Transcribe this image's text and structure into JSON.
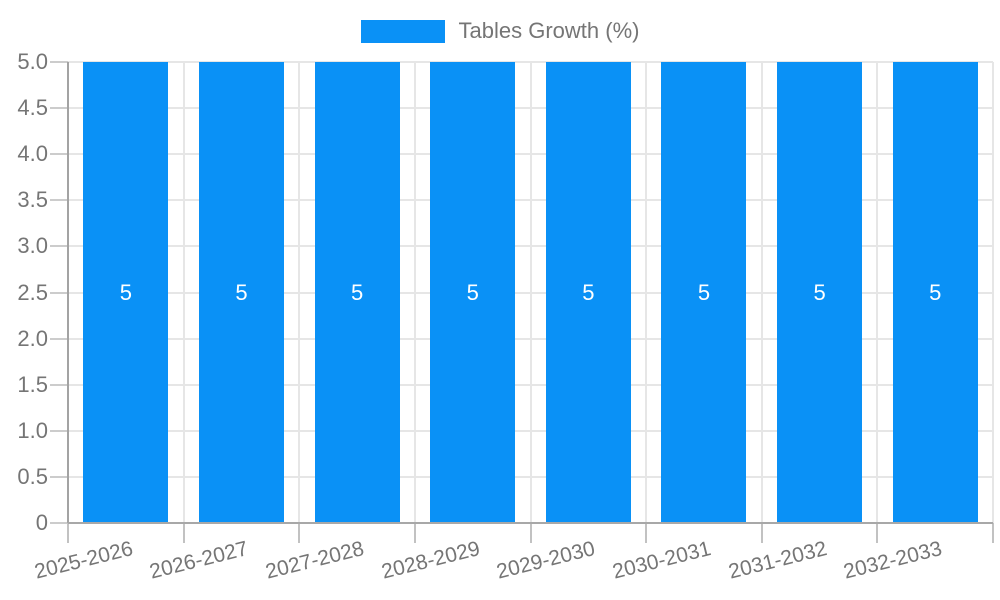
{
  "chart_data": {
    "type": "bar",
    "title": "",
    "xlabel": "",
    "ylabel": "",
    "categories": [
      "2025-2026",
      "2026-2027",
      "2027-2028",
      "2028-2029",
      "2029-2030",
      "2030-2031",
      "2031-2032",
      "2032-2033"
    ],
    "series": [
      {
        "name": "Tables Growth (%)",
        "color": "#0a91f6",
        "values": [
          5,
          5,
          5,
          5,
          5,
          5,
          5,
          5
        ]
      }
    ],
    "value_labels": [
      "5",
      "5",
      "5",
      "5",
      "5",
      "5",
      "5",
      "5"
    ],
    "ylim": [
      0,
      5
    ],
    "ytick_step": 0.5,
    "ytick_labels": [
      "5.0",
      "4.5",
      "4.0",
      "3.5",
      "3.0",
      "2.5",
      "2.0",
      "1.5",
      "1.0",
      "0.5",
      "0"
    ],
    "grid": true,
    "legend_position": "top"
  },
  "colors": {
    "bar": "#0a91f6",
    "text": "#757575",
    "gridline": "#e6e6e6",
    "axis": "#a3a3a3",
    "tick": "#c9c9c9",
    "value_label": "#ffffff"
  }
}
